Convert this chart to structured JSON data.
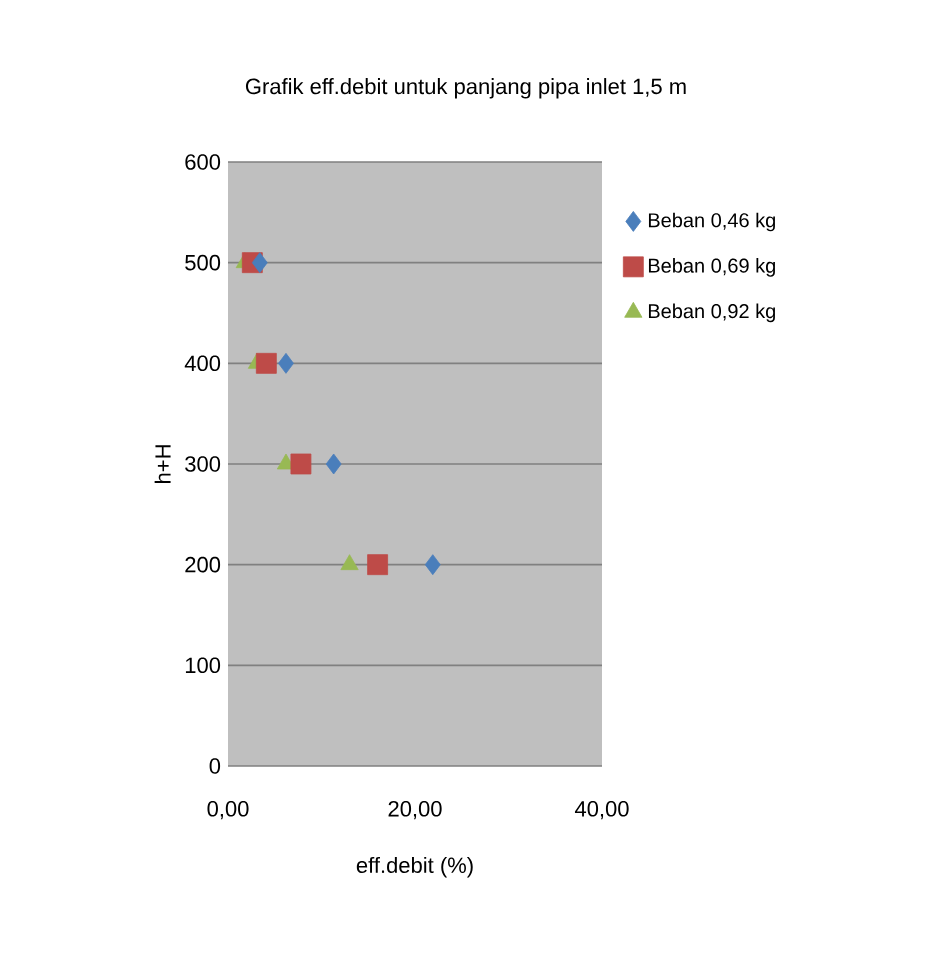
{
  "chart_data": {
    "type": "scatter",
    "title": "Grafik eff.debit untuk panjang pipa inlet 1,5 m",
    "xlabel": "eff.debit (%)",
    "ylabel": "h+H",
    "xlim": [
      0,
      40
    ],
    "xticks": [
      {
        "value": 0,
        "label": "0,00"
      },
      {
        "value": 20,
        "label": "20,00"
      },
      {
        "value": 40,
        "label": "40,00"
      }
    ],
    "ylim": [
      0,
      600
    ],
    "yticks": [
      0,
      100,
      200,
      300,
      400,
      500,
      600
    ],
    "grid": "y",
    "legend": "right",
    "series": [
      {
        "name": "Beban 0,46 kg",
        "color": "#4a7ebb",
        "marker": "diamond",
        "x": [
          21.9,
          11.3,
          6.2,
          3.4
        ],
        "values": [
          200,
          300,
          400,
          500
        ]
      },
      {
        "name": "Beban 0,69 kg",
        "color": "#be4b48",
        "marker": "square",
        "x": [
          16.0,
          7.8,
          4.1,
          2.6
        ],
        "values": [
          200,
          300,
          400,
          500
        ]
      },
      {
        "name": "Beban 0,92 kg",
        "color": "#98b954",
        "marker": "triangle",
        "x": [
          13.0,
          6.2,
          3.1,
          1.8
        ],
        "values": [
          200,
          300,
          400,
          500
        ]
      }
    ]
  }
}
